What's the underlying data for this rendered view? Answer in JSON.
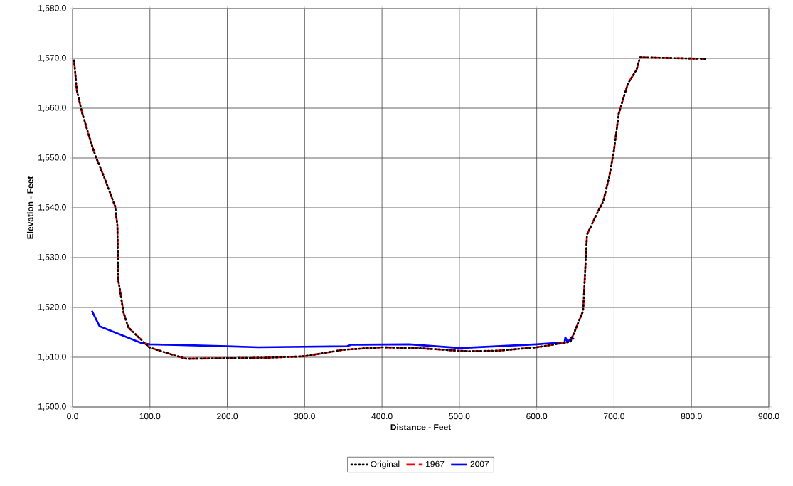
{
  "chart_data": {
    "type": "line",
    "xlabel": "Distance - Feet",
    "ylabel": "Elevation - Feet",
    "xlim": [
      0,
      900
    ],
    "ylim": [
      1500,
      1580
    ],
    "xticks": [
      {
        "value": 0,
        "label": "0.0"
      },
      {
        "value": 100,
        "label": "100.0"
      },
      {
        "value": 200,
        "label": "200.0"
      },
      {
        "value": 300,
        "label": "300.0"
      },
      {
        "value": 400,
        "label": "400.0"
      },
      {
        "value": 500,
        "label": "500.0"
      },
      {
        "value": 600,
        "label": "600.0"
      },
      {
        "value": 700,
        "label": "700.0"
      },
      {
        "value": 800,
        "label": "800.0"
      },
      {
        "value": 900,
        "label": "900.0"
      }
    ],
    "yticks": [
      {
        "value": 1500,
        "label": "1,500.0"
      },
      {
        "value": 1510,
        "label": "1,510.0"
      },
      {
        "value": 1520,
        "label": "1,520.0"
      },
      {
        "value": 1530,
        "label": "1,530.0"
      },
      {
        "value": 1540,
        "label": "1,540.0"
      },
      {
        "value": 1550,
        "label": "1,550.0"
      },
      {
        "value": 1560,
        "label": "1,560.0"
      },
      {
        "value": 1570,
        "label": "1,570.0"
      },
      {
        "value": 1580,
        "label": "1,580.0"
      }
    ],
    "grid": true,
    "legend": "bottom",
    "marker": "none",
    "series": [
      {
        "name": "Original",
        "color": "#000000",
        "line_style": "dotted",
        "x": [
          2,
          5.5,
          12,
          24,
          30,
          42,
          55,
          58,
          59,
          66,
          72,
          99,
          133,
          147,
          200,
          250,
          300,
          350,
          400,
          450,
          510,
          550,
          600,
          620,
          643.5,
          660,
          665,
          678,
          686,
          694,
          700,
          706,
          718,
          729,
          733.6,
          819
        ],
        "values": [
          1569.6,
          1563.6,
          1559.3,
          1553,
          1550.3,
          1545.7,
          1540.3,
          1536.4,
          1525.6,
          1518.9,
          1516,
          1512,
          1510.3,
          1509.7,
          1509.8,
          1509.9,
          1510.2,
          1511.5,
          1512,
          1511.8,
          1511.2,
          1511.3,
          1512,
          1512.5,
          1513.1,
          1519.3,
          1534.6,
          1538.9,
          1541.3,
          1546.4,
          1551.7,
          1558.9,
          1565,
          1567.7,
          1570.2,
          1569.9
        ]
      },
      {
        "name": "1967",
        "color": "#ff0000",
        "line_style": "dashed",
        "x": [
          2,
          5.5,
          12,
          24,
          30,
          42,
          55,
          58,
          59,
          66,
          72,
          99,
          133,
          147,
          200,
          250,
          300,
          350,
          400,
          450,
          510,
          550,
          600,
          620,
          643.5,
          660,
          665,
          678,
          686,
          694,
          700,
          706,
          718,
          729,
          733.6,
          819
        ],
        "values": [
          1569.6,
          1563.6,
          1559.3,
          1553,
          1550.3,
          1545.7,
          1540.3,
          1536.4,
          1525.6,
          1518.9,
          1516,
          1512,
          1510.3,
          1509.7,
          1509.8,
          1509.9,
          1510.2,
          1511.5,
          1512,
          1511.8,
          1511.2,
          1511.3,
          1512,
          1512.5,
          1513.1,
          1519.3,
          1534.6,
          1538.9,
          1541.3,
          1546.4,
          1551.7,
          1558.9,
          1565,
          1567.7,
          1570.2,
          1569.9
        ]
      },
      {
        "name": "2007",
        "color": "#0000ff",
        "line_style": "solid",
        "x": [
          25,
          35,
          90,
          100,
          200,
          240,
          355,
          360,
          435,
          505,
          510,
          600,
          636,
          637,
          640,
          645,
          648
        ],
        "values": [
          1519.3,
          1516.2,
          1512.8,
          1512.6,
          1512.2,
          1512,
          1512.2,
          1512.5,
          1512.6,
          1511.8,
          1511.9,
          1512.6,
          1513,
          1514,
          1513,
          1514,
          1513.6
        ]
      }
    ]
  }
}
